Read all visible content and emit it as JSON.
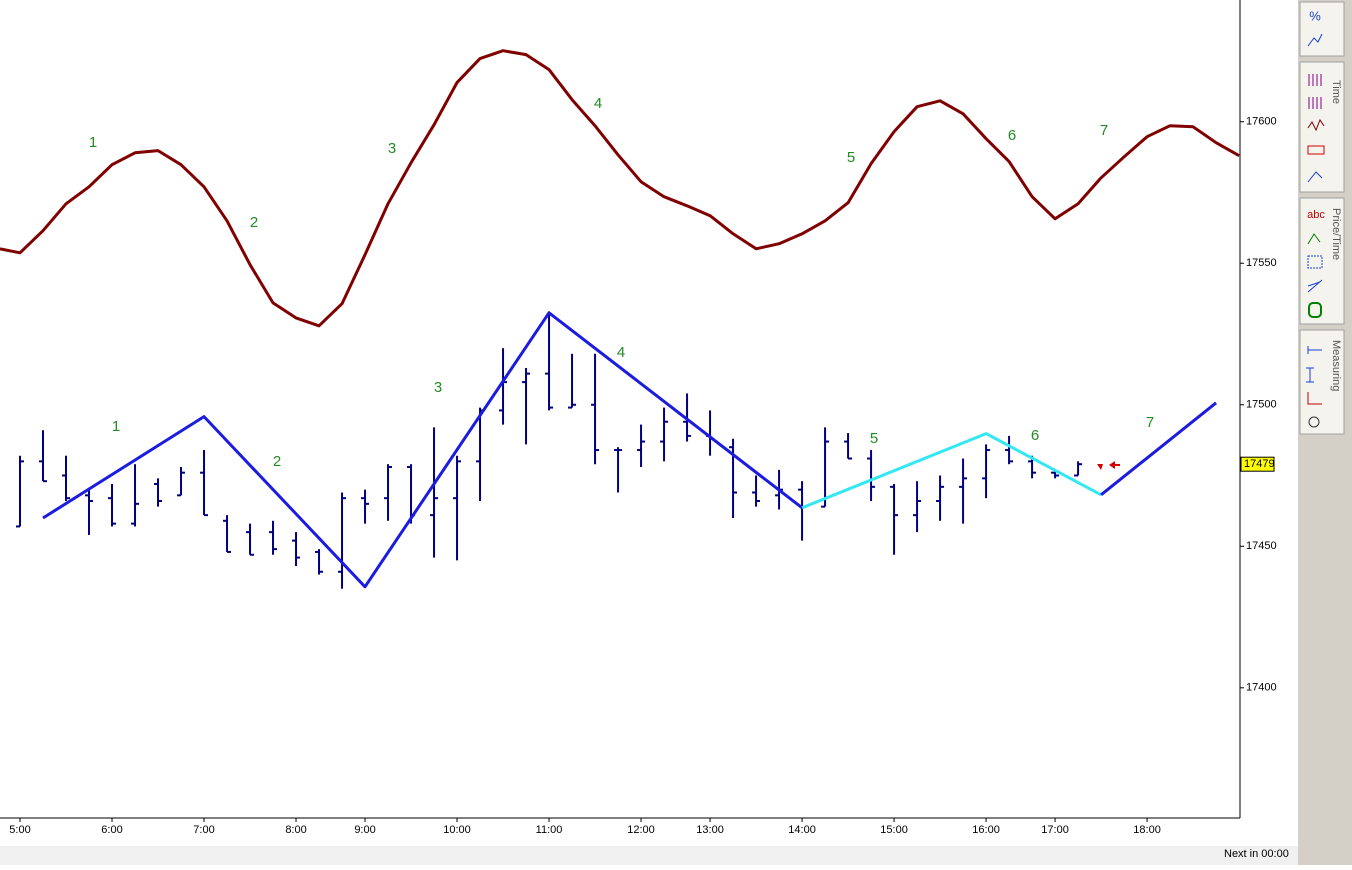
{
  "chart_data": {
    "type": "ohlc",
    "bar_color": "#000080",
    "x": [
      0,
      1,
      2,
      3,
      4,
      5,
      6,
      7,
      8,
      9,
      10,
      11,
      12,
      13,
      14,
      15,
      16,
      17,
      18,
      19,
      20,
      21,
      22,
      23,
      24,
      25,
      26,
      27,
      28,
      29,
      30,
      31,
      32,
      33,
      34,
      35,
      36,
      37,
      38,
      39,
      40,
      41,
      42,
      43,
      44,
      45,
      46
    ],
    "open": [
      17457,
      17480,
      17475,
      17468,
      17467,
      17458,
      17472,
      17468,
      17476,
      17459,
      17455,
      17455,
      17452,
      17448,
      17441,
      17467,
      17467,
      17478,
      17461,
      17467,
      17480,
      17498,
      17508,
      17511,
      17499,
      17500,
      17484,
      17484,
      17487,
      17494,
      17489,
      17485,
      17469,
      17468,
      17470,
      17464,
      17487,
      17481,
      17471,
      17461,
      17466,
      17471,
      17474,
      17484,
      17480,
      17476,
      17475
    ],
    "high": [
      17482,
      17491,
      17482,
      17470,
      17472,
      17479,
      17474,
      17478,
      17484,
      17461,
      17458,
      17459,
      17455,
      17449,
      17469,
      17470,
      17479,
      17479,
      17492,
      17482,
      17499,
      17520,
      17513,
      17533,
      17518,
      17518,
      17485,
      17493,
      17499,
      17504,
      17498,
      17488,
      17475,
      17477,
      17473,
      17492,
      17490,
      17484,
      17472,
      17473,
      17475,
      17481,
      17486,
      17489,
      17482,
      17477,
      17480
    ],
    "low": [
      17457,
      17473,
      17466,
      17454,
      17457,
      17457,
      17464,
      17468,
      17461,
      17448,
      17447,
      17447,
      17443,
      17440,
      17435,
      17458,
      17459,
      17458,
      17446,
      17445,
      17466,
      17493,
      17486,
      17498,
      17499,
      17479,
      17469,
      17478,
      17480,
      17487,
      17482,
      17460,
      17464,
      17463,
      17452,
      17464,
      17481,
      17466,
      17447,
      17455,
      17459,
      17458,
      17467,
      17479,
      17474,
      17474,
      17475
    ],
    "close": [
      17480,
      17473,
      17467,
      17466,
      17458,
      17465,
      17466,
      17476,
      17461,
      17448,
      17447,
      17449,
      17446,
      17441,
      17467,
      17465,
      17478,
      17461,
      17467,
      17480,
      17498,
      17508,
      17511,
      17499,
      17500,
      17484,
      17484,
      17487,
      17494,
      17489,
      17488,
      17469,
      17466,
      17470,
      17464,
      17487,
      17481,
      17471,
      17461,
      17466,
      17471,
      17474,
      17484,
      17480,
      17476,
      17475,
      17479
    ],
    "lines": [
      {
        "color": "#800000",
        "width": 3,
        "x": [
          -0.87,
          0,
          1,
          2,
          3,
          4,
          5,
          6,
          7,
          8,
          9,
          10,
          11,
          12,
          13,
          14,
          15,
          16,
          17,
          18,
          19,
          20,
          21,
          22,
          23,
          24,
          25,
          26,
          27,
          28,
          29,
          30,
          31,
          32,
          33,
          34,
          35,
          36,
          37,
          38,
          39,
          40,
          41,
          42,
          43,
          44,
          45,
          46,
          47,
          48,
          49,
          50,
          51,
          52,
          53
        ],
        "values": [
          17555.1,
          17553.7,
          17561.5,
          17571.0,
          17577.0,
          17584.8,
          17589.0,
          17589.8,
          17584.8,
          17577.0,
          17565.0,
          17549.5,
          17536.0,
          17530.7,
          17527.9,
          17535.7,
          17553.0,
          17571.0,
          17585.5,
          17598.9,
          17613.8,
          17622.3,
          17625.1,
          17623.7,
          17618.4,
          17607.8,
          17598.6,
          17588.3,
          17578.8,
          17573.5,
          17570.3,
          17566.8,
          17560.4,
          17555.1,
          17556.9,
          17560.4,
          17565.0,
          17571.4,
          17585.2,
          17596.5,
          17605.3,
          17607.4,
          17602.8,
          17594.0,
          17585.9,
          17573.5,
          17565.7,
          17571.0,
          17580.2,
          17587.6,
          17594.7,
          17598.6,
          17598.2,
          17592.6,
          17588.0
        ]
      },
      {
        "color": "#1c1ce0",
        "width": 3,
        "x": [
          1,
          8,
          15,
          23,
          34
        ],
        "values": [
          17460,
          17495.8,
          17435.7,
          17532.5,
          17463.6
        ]
      },
      {
        "color": "#33e8f2",
        "width": 3,
        "x": [
          34,
          42,
          47
        ],
        "values": [
          17463.6,
          17489.8,
          17468.2
        ]
      },
      {
        "color": "#1c1ce0",
        "width": 3,
        "x": [
          47,
          52
        ],
        "values": [
          17468.2,
          17500.7
        ]
      }
    ],
    "annotations": [
      "1",
      "2",
      "3",
      "4",
      "5",
      "6",
      "7",
      "1",
      "2",
      "3",
      "4",
      "5",
      "6",
      "7"
    ],
    "annotation_color": "#228b22",
    "xlim": [
      -0.87,
      53.04
    ],
    "xticks": [
      {
        "value": 0,
        "label": "5:00"
      },
      {
        "value": 4,
        "label": "6:00"
      },
      {
        "value": 8,
        "label": "7:00"
      },
      {
        "value": 12,
        "label": "8:00"
      },
      {
        "value": 15,
        "label": "9:00"
      },
      {
        "value": 19,
        "label": "10:00"
      },
      {
        "value": 23,
        "label": "11:00"
      },
      {
        "value": 27,
        "label": "12:00"
      },
      {
        "value": 30,
        "label": "13:00"
      },
      {
        "value": 34,
        "label": "14:00"
      },
      {
        "value": 38,
        "label": "15:00"
      },
      {
        "value": 42,
        "label": "16:00"
      },
      {
        "value": 45,
        "label": "17:00"
      },
      {
        "value": 49,
        "label": "18:00"
      }
    ],
    "ylim": [
      17354,
      17643
    ],
    "yticks": [
      17400,
      17450,
      17500,
      17550,
      17600
    ],
    "last_price": 17479
  },
  "toolbar": {
    "symbols": [
      "%",
      "abc"
    ],
    "tabs": [
      "Time",
      "Price/Time",
      "Measuring"
    ]
  },
  "status": "Next in 00:00"
}
